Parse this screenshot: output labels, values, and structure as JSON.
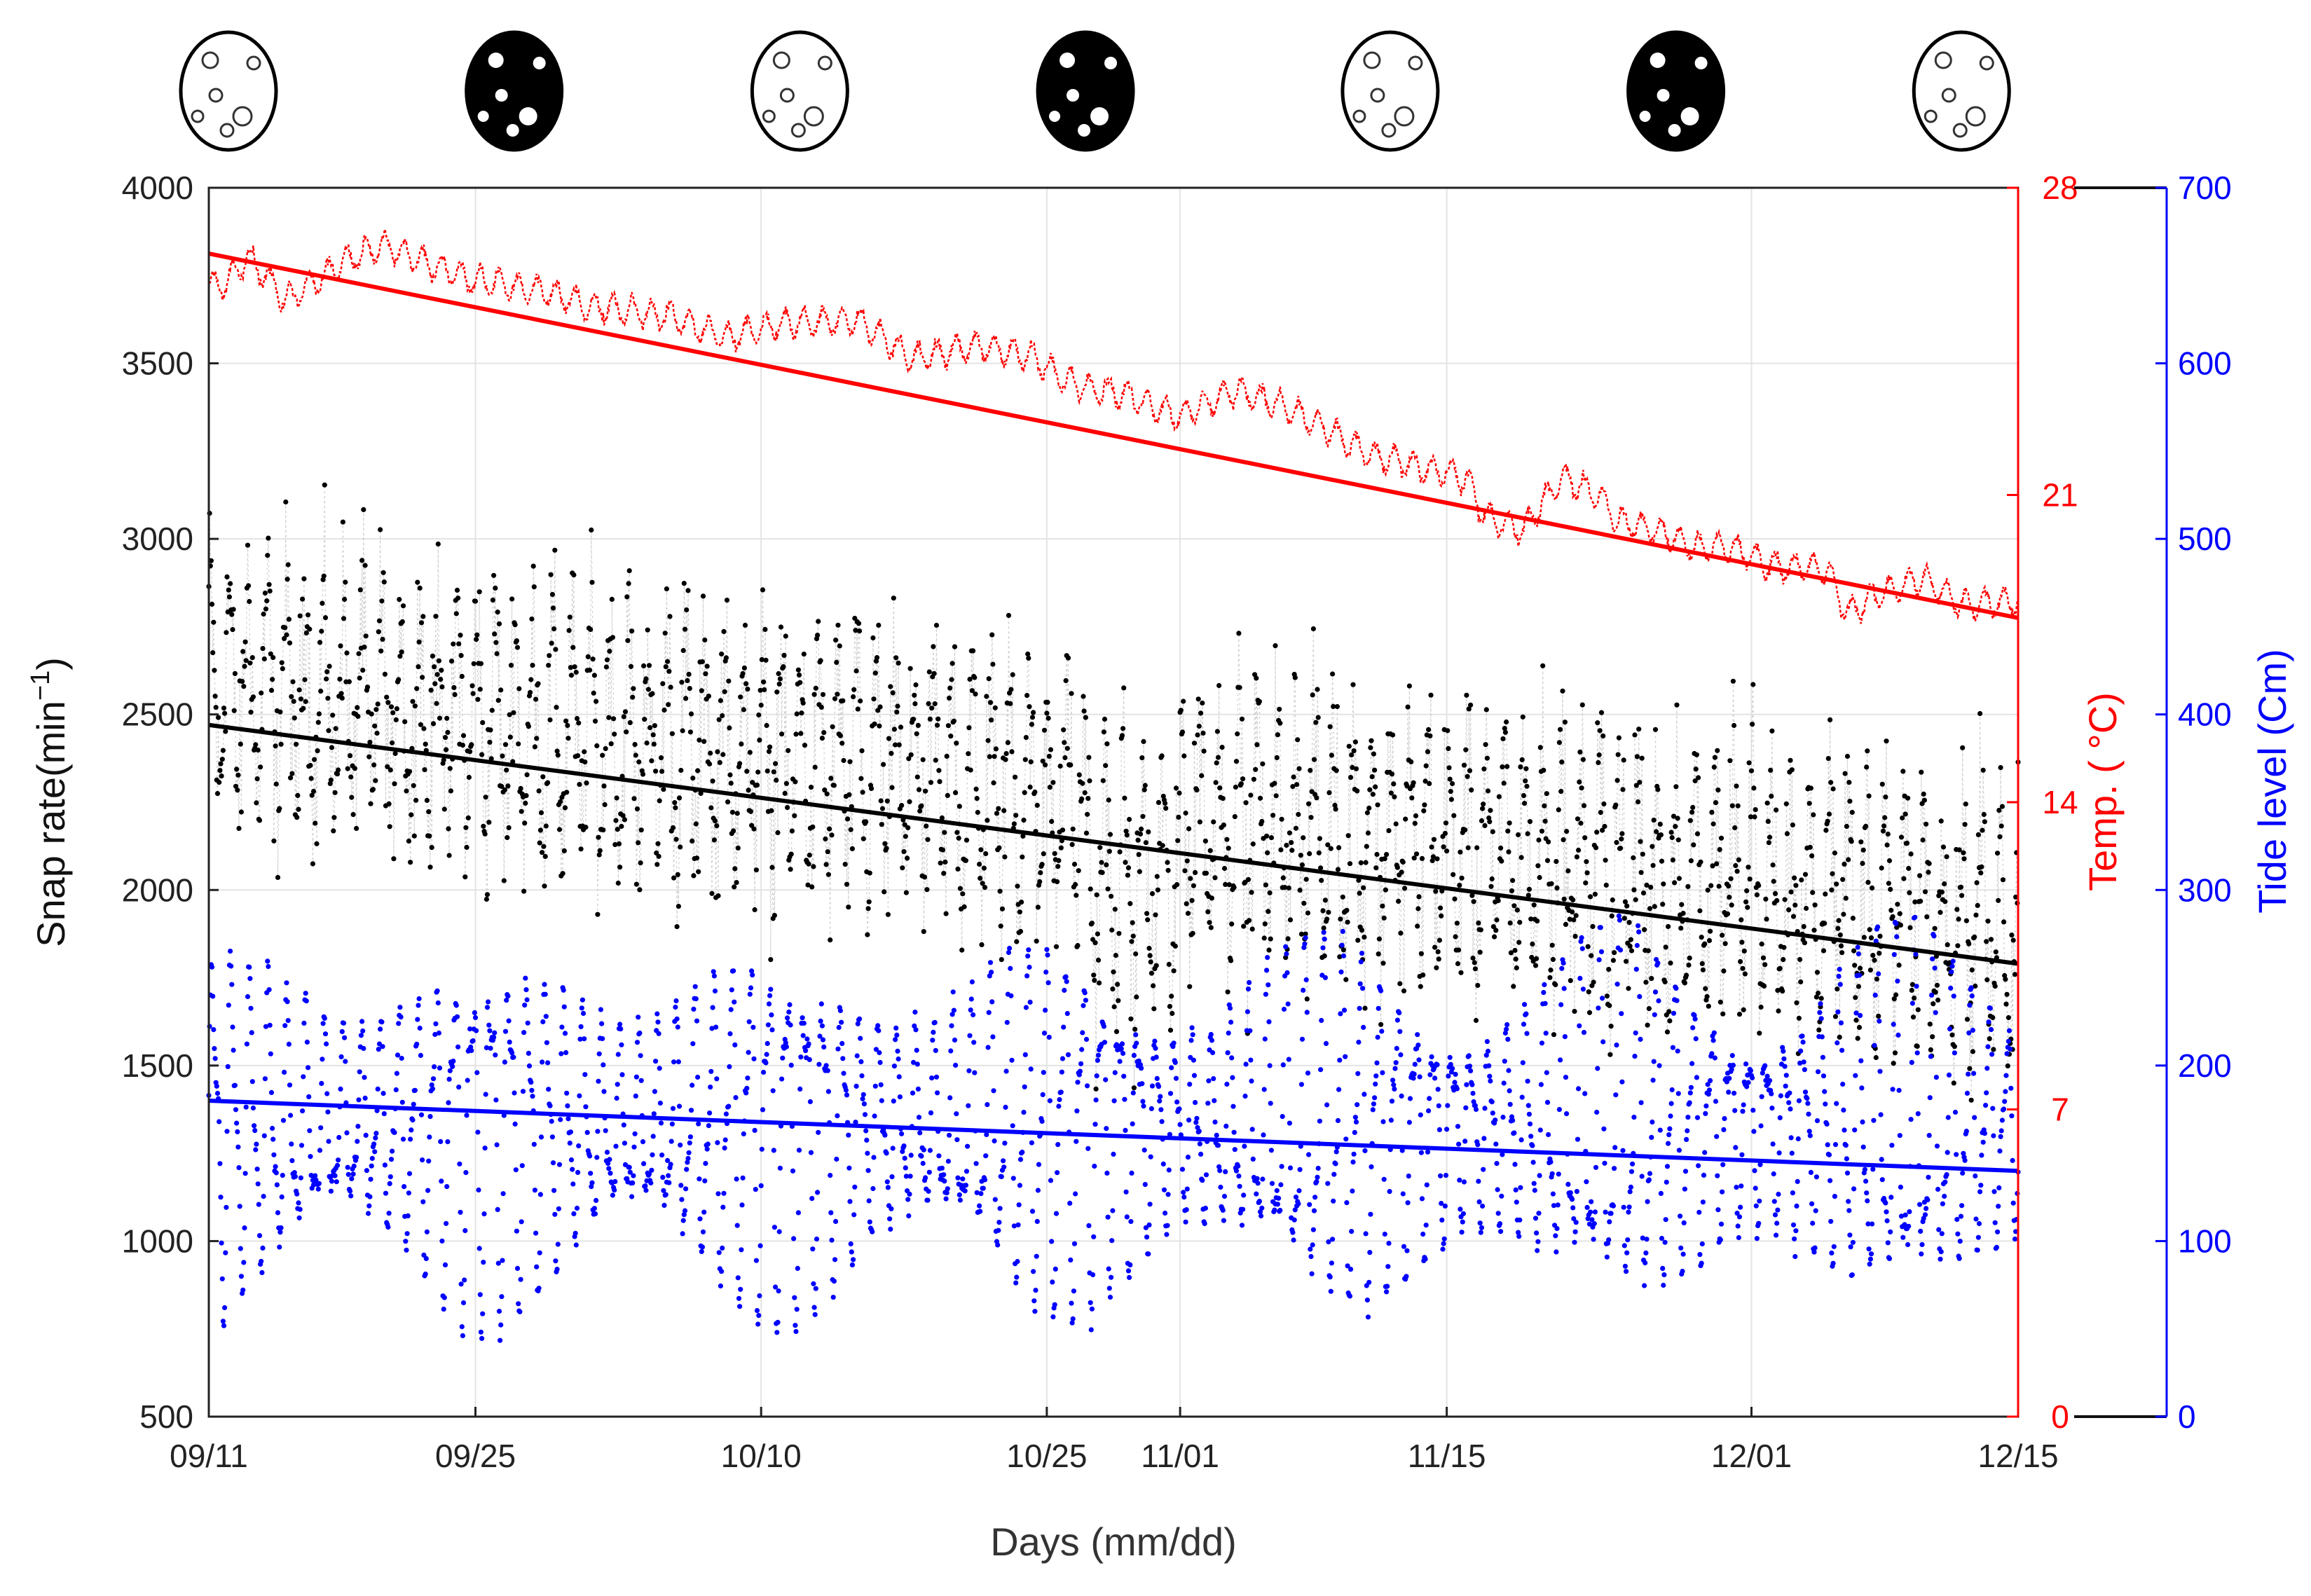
{
  "chart_data": {
    "type": "scatter",
    "title": "",
    "xlabel": "Days (mm/dd)",
    "ylabel": "Snap rate(min",
    "ylabel_exponent": "−1",
    "ylabel_close": ")",
    "y2label": "Temp. ( °C)",
    "y3label": "Tide level (Cm)",
    "x_tick_labels": [
      "09/11",
      "09/25",
      "10/10",
      "10/25",
      "11/01",
      "11/15",
      "12/01",
      "12/15"
    ],
    "x_tick_days": [
      0,
      14,
      29,
      44,
      51,
      65,
      81,
      95
    ],
    "xlim": [
      0,
      95
    ],
    "y_left": {
      "range": [
        500,
        4000
      ],
      "ticks": [
        500,
        1000,
        1500,
        2000,
        2500,
        3000,
        3500,
        4000
      ],
      "color": "#222222"
    },
    "y_temp": {
      "range": [
        0,
        28
      ],
      "ticks": [
        0,
        7,
        14,
        21,
        28
      ],
      "color": "#ff0000"
    },
    "y_tide": {
      "range": [
        0,
        700
      ],
      "ticks": [
        0,
        100,
        200,
        300,
        400,
        500,
        600,
        700
      ],
      "color": "#0000ff"
    },
    "moon_phases": [
      "full",
      "new",
      "full",
      "new",
      "full",
      "new",
      "full"
    ],
    "moon_phase_days": [
      0,
      15,
      30,
      45,
      61,
      76,
      91
    ],
    "series": [
      {
        "name": "Snap rate",
        "axis": "left",
        "color": "#000000",
        "style": "dotted-points",
        "day_start": 0,
        "day_end": 95,
        "points_per_day": 24,
        "trend_start": 2580,
        "trend_slope_per_day": -7.1,
        "daily_swing": 280,
        "noise": 380
      },
      {
        "name": "Temperature",
        "axis": "temp",
        "color": "#ff0000",
        "style": "dotted-line",
        "profile_days": [
          0,
          1,
          2,
          3,
          4,
          7,
          9,
          12,
          14,
          18,
          20,
          24,
          27,
          30,
          34,
          37,
          40,
          43,
          45,
          48,
          51,
          54,
          57,
          61,
          64,
          66,
          67,
          69,
          71,
          73,
          74,
          76,
          78,
          80,
          82,
          85,
          86,
          88,
          90,
          92,
          95
        ],
        "profile_temps": [
          25.7,
          25.9,
          26.4,
          26.0,
          25.4,
          26.3,
          26.7,
          26.2,
          25.9,
          25.6,
          25.3,
          25.1,
          24.6,
          24.9,
          25.0,
          24.1,
          24.4,
          24.2,
          23.6,
          23.3,
          22.8,
          23.4,
          22.9,
          21.9,
          21.6,
          21.4,
          20.5,
          20.2,
          21.4,
          21.0,
          20.4,
          20.2,
          19.8,
          19.8,
          19.4,
          19.3,
          18.3,
          18.8,
          19.1,
          18.5,
          18.6
        ],
        "noise": 0.3
      },
      {
        "name": "Tide level",
        "axis": "tide",
        "color": "#0000ff",
        "style": "dotted-points",
        "day_start": 0,
        "day_end": 95,
        "points_per_day": 24,
        "mean": 165,
        "daily_amplitude": 85,
        "semidiurnal_amplitude": 35,
        "spring_neap_period_days": 14.8,
        "spring_neap_depth": 0.5
      }
    ],
    "trend_lines": [
      {
        "name": "Temperature trend",
        "axis": "temp",
        "color": "#ff0000",
        "start": [
          0,
          26.5
        ],
        "end": [
          95,
          18.2
        ]
      },
      {
        "name": "Snap rate trend",
        "axis": "left",
        "color": "#000000",
        "start": [
          0,
          2470
        ],
        "end": [
          95,
          1790
        ]
      },
      {
        "name": "Tide level trend",
        "axis": "tide",
        "color": "#0000ff",
        "start": [
          0,
          180
        ],
        "end": [
          95,
          140
        ]
      }
    ]
  }
}
